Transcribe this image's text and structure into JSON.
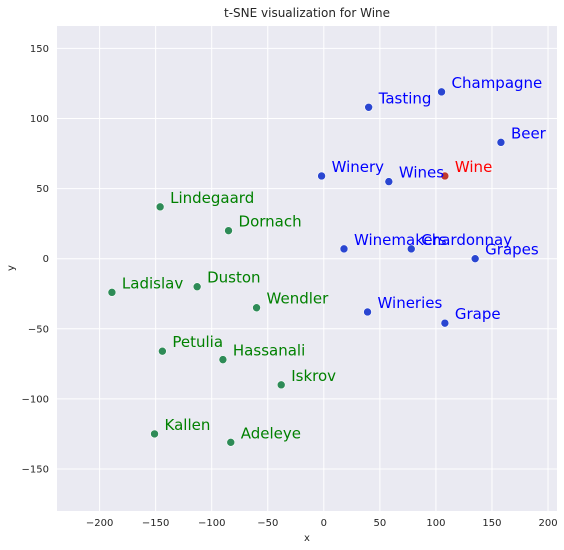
{
  "chart_data": {
    "type": "scatter",
    "title": "t-SNE visualization for Wine",
    "xlabel": "x",
    "ylabel": "y",
    "xlim": [
      -238,
      208
    ],
    "ylim": [
      -180,
      166
    ],
    "xticks": [
      -200,
      -150,
      -100,
      -50,
      0,
      50,
      100,
      150,
      200
    ],
    "yticks": [
      -150,
      -100,
      -50,
      0,
      50,
      100,
      150
    ],
    "xtick_labels": [
      "−200",
      "−150",
      "−100",
      "−50",
      "0",
      "50",
      "100",
      "150",
      "200"
    ],
    "ytick_labels": [
      "−150",
      "−100",
      "−50",
      "0",
      "50",
      "100",
      "150"
    ],
    "grid": true,
    "background": "#eaeaf2",
    "colors": {
      "blue_marker": "#2a46d1",
      "blue_text": "#0000ff",
      "green_marker": "#2e8b57",
      "green_text": "#008000",
      "red_marker": "#c0392b",
      "red_text": "#ff0000"
    },
    "points": [
      {
        "label": "Champagne",
        "x": 105,
        "y": 119,
        "group": "blue"
      },
      {
        "label": "Tasting",
        "x": 40,
        "y": 108,
        "group": "blue"
      },
      {
        "label": "Beer",
        "x": 158,
        "y": 83,
        "group": "blue"
      },
      {
        "label": "Winery",
        "x": -2,
        "y": 59,
        "group": "blue"
      },
      {
        "label": "Wines",
        "x": 58,
        "y": 55,
        "group": "blue"
      },
      {
        "label": "Wine",
        "x": 108,
        "y": 59,
        "group": "red"
      },
      {
        "label": "Winemakers",
        "x": 18,
        "y": 7,
        "group": "blue"
      },
      {
        "label": "Chardonnay",
        "x": 78,
        "y": 7,
        "group": "blue"
      },
      {
        "label": "Grapes",
        "x": 135,
        "y": 0,
        "group": "blue"
      },
      {
        "label": "Wineries",
        "x": 39,
        "y": -38,
        "group": "blue"
      },
      {
        "label": "Grape",
        "x": 108,
        "y": -46,
        "group": "blue"
      },
      {
        "label": "Lindegaard",
        "x": -146,
        "y": 37,
        "group": "green"
      },
      {
        "label": "Dornach",
        "x": -85,
        "y": 20,
        "group": "green"
      },
      {
        "label": "Ladislav",
        "x": -189,
        "y": -24,
        "group": "green"
      },
      {
        "label": "Duston",
        "x": -113,
        "y": -20,
        "group": "green"
      },
      {
        "label": "Wendler",
        "x": -60,
        "y": -35,
        "group": "green"
      },
      {
        "label": "Petulia",
        "x": -144,
        "y": -66,
        "group": "green"
      },
      {
        "label": "Hassanali",
        "x": -90,
        "y": -72,
        "group": "green"
      },
      {
        "label": "Iskrov",
        "x": -38,
        "y": -90,
        "group": "green"
      },
      {
        "label": "Kallen",
        "x": -151,
        "y": -125,
        "group": "green"
      },
      {
        "label": "Adeleye",
        "x": -83,
        "y": -131,
        "group": "green"
      }
    ]
  }
}
